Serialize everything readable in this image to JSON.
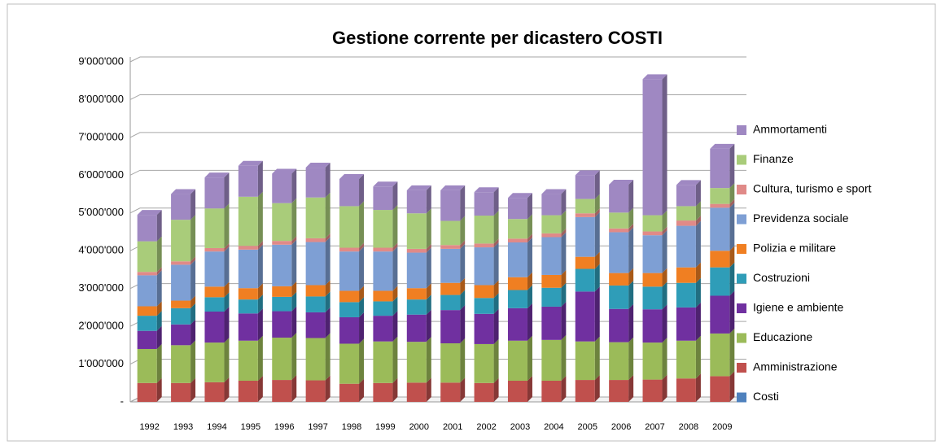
{
  "chart_data": {
    "type": "stacked-bar",
    "title": "Gestione corrente per dicastero COSTI",
    "categories": [
      "1992",
      "1993",
      "1994",
      "1995",
      "1996",
      "1997",
      "1998",
      "1999",
      "2000",
      "2001",
      "2002",
      "2003",
      "2004",
      "2005",
      "2006",
      "2007",
      "2008",
      "2009"
    ],
    "series": [
      {
        "name": "Costi",
        "color": "#4f81bd",
        "values": [
          0,
          0,
          0,
          0,
          0,
          0,
          0,
          0,
          0,
          0,
          0,
          0,
          0,
          0,
          0,
          0,
          0,
          0
        ]
      },
      {
        "name": "Amministrazione",
        "color": "#c0504d",
        "values": [
          500000,
          500000,
          520000,
          560000,
          580000,
          570000,
          480000,
          500000,
          510000,
          510000,
          500000,
          560000,
          560000,
          580000,
          580000,
          590000,
          620000,
          680000
        ]
      },
      {
        "name": "Educazione",
        "color": "#9bbb59",
        "values": [
          900000,
          1000000,
          1050000,
          1060000,
          1120000,
          1120000,
          1060000,
          1100000,
          1080000,
          1040000,
          1030000,
          1060000,
          1080000,
          1020000,
          1000000,
          980000,
          1000000,
          1130000
        ]
      },
      {
        "name": "Igiene e ambiente",
        "color": "#7030a0",
        "values": [
          480000,
          550000,
          820000,
          720000,
          700000,
          680000,
          700000,
          680000,
          720000,
          880000,
          800000,
          860000,
          880000,
          1320000,
          880000,
          880000,
          880000,
          1000000
        ]
      },
      {
        "name": "Costruzioni",
        "color": "#2f9db8",
        "values": [
          400000,
          430000,
          380000,
          370000,
          380000,
          420000,
          400000,
          380000,
          400000,
          400000,
          420000,
          480000,
          500000,
          600000,
          620000,
          600000,
          650000,
          750000
        ]
      },
      {
        "name": "Polizia e militare",
        "color": "#f07f22",
        "values": [
          250000,
          200000,
          280000,
          300000,
          280000,
          300000,
          300000,
          280000,
          300000,
          320000,
          340000,
          340000,
          340000,
          320000,
          330000,
          360000,
          410000,
          440000
        ]
      },
      {
        "name": "Previdenza sociale",
        "color": "#7e9fd4",
        "values": [
          820000,
          950000,
          930000,
          1020000,
          1100000,
          1140000,
          1040000,
          1040000,
          940000,
          900000,
          1000000,
          920000,
          1000000,
          1050000,
          1080000,
          1000000,
          1100000,
          1140000
        ]
      },
      {
        "name": "Cultura, turismo e sport",
        "color": "#e08a88",
        "values": [
          90000,
          90000,
          90000,
          100000,
          100000,
          100000,
          100000,
          100000,
          100000,
          100000,
          100000,
          100000,
          100000,
          100000,
          100000,
          100000,
          140000,
          100000
        ]
      },
      {
        "name": "Finanze",
        "color": "#a9cc7a",
        "values": [
          810000,
          1100000,
          1050000,
          1300000,
          1000000,
          1080000,
          1100000,
          1000000,
          940000,
          640000,
          740000,
          520000,
          480000,
          380000,
          420000,
          430000,
          380000,
          420000
        ]
      },
      {
        "name": "Ammortamenti",
        "color": "#9f88c2",
        "values": [
          700000,
          680000,
          820000,
          820000,
          780000,
          790000,
          720000,
          620000,
          610000,
          810000,
          620000,
          560000,
          560000,
          630000,
          740000,
          3600000,
          560000,
          1040000
        ]
      }
    ],
    "ylim": [
      0,
      9000000
    ],
    "yticks": [
      {
        "value": 0,
        "label": "-"
      },
      {
        "value": 1000000,
        "label": "1'000'000"
      },
      {
        "value": 2000000,
        "label": "2'000'000"
      },
      {
        "value": 3000000,
        "label": "3'000'000"
      },
      {
        "value": 4000000,
        "label": "4'000'000"
      },
      {
        "value": 5000000,
        "label": "5'000'000"
      },
      {
        "value": 6000000,
        "label": "6'000'000"
      },
      {
        "value": 7000000,
        "label": "7'000'000"
      },
      {
        "value": 8000000,
        "label": "8'000'000"
      },
      {
        "value": 9000000,
        "label": "9'000'000"
      }
    ],
    "grid": true,
    "legend": "right"
  }
}
